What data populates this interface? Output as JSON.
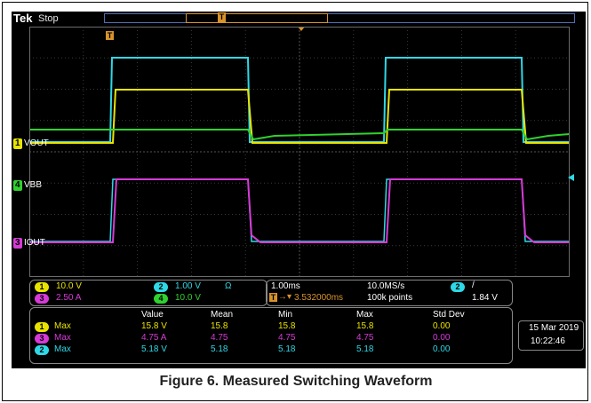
{
  "header": {
    "brand": "Tek",
    "acquisition_state": "Stop"
  },
  "trigger_marker": "T",
  "channels": [
    {
      "num": "1",
      "name": "VOUT",
      "color": "#e8e400"
    },
    {
      "num": "4",
      "name": "VBB",
      "color": "#2fd12f"
    },
    {
      "num": "3",
      "name": "IOUT",
      "color": "#d63ad6"
    },
    {
      "num": "2",
      "name": "",
      "color": "#2fd8e6"
    }
  ],
  "scales": {
    "ch1": "10.0 V",
    "ch2": "1.00 V",
    "ch2_term": "Ω",
    "ch3": "2.50 A",
    "ch4": "10.0 V"
  },
  "timebase": {
    "time_div": "1.00ms",
    "sample_rate": "10.0MS/s",
    "position": "3.532000ms",
    "record_length": "100k points",
    "trigger_channel": "2",
    "trigger_slope": "/",
    "trigger_level": "1.84 V"
  },
  "measurements": {
    "headers": [
      "Value",
      "Mean",
      "Min",
      "Max",
      "Std Dev"
    ],
    "rows": [
      {
        "ch": "1",
        "label": "Max",
        "value": "15.8 V",
        "mean": "15.8",
        "min": "15.8",
        "max": "15.8",
        "std": "0.00"
      },
      {
        "ch": "3",
        "label": "Max",
        "value": "4.75 A",
        "mean": "4.75",
        "min": "4.75",
        "max": "4.75",
        "std": "0.00"
      },
      {
        "ch": "2",
        "label": "Max",
        "value": "5.18 V",
        "mean": "5.18",
        "min": "5.18",
        "max": "5.18",
        "std": "0.00"
      }
    ]
  },
  "datetime": {
    "date": "15 Mar 2019",
    "time": "10:22:46"
  },
  "caption": "Figure 6. Measured Switching Waveform"
}
